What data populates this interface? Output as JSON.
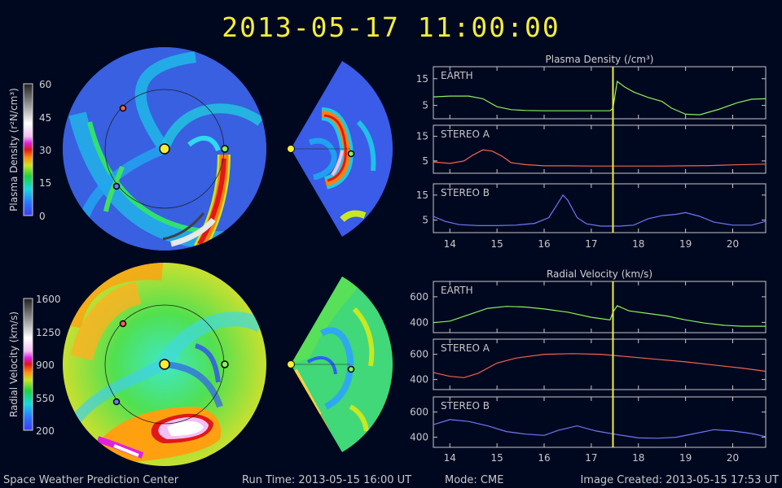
{
  "header": {
    "timestamp": "2013-05-17  11:00:00"
  },
  "footer": {
    "center": "Space Weather Prediction Center",
    "run_time": "Run Time: 2013-05-15 16:00 UT",
    "mode": "Mode: CME",
    "created": "Image Created: 2013-05-15 17:53 UT"
  },
  "colors": {
    "earth": "#8cf05a",
    "stereo_a": "#f06450",
    "stereo_b": "#6e78f5",
    "marker": "#f0f03c",
    "sun": "#f4ee38"
  },
  "maps": {
    "density_colorbar": {
      "label": "Plasma Density (r²N/cm³)",
      "ticks": [
        "60",
        "45",
        "30",
        "15",
        "0"
      ]
    },
    "velocity_colorbar": {
      "label": "Radial Velocity (km/s)",
      "ticks": [
        "1600",
        "1250",
        "900",
        "550",
        "200"
      ]
    }
  },
  "chart_data": [
    {
      "type": "line",
      "title": "Plasma Density (/cm³)",
      "x_tick_labels": [
        "14",
        "15",
        "16",
        "17",
        "18",
        "19",
        "20"
      ],
      "xlim": [
        13.65,
        20.7
      ],
      "current_time_marker": 17.46,
      "panels": [
        {
          "label": "EARTH",
          "color": "earth",
          "yticks": [
            "15",
            "5"
          ],
          "ylim": [
            0,
            19.5
          ],
          "x": [
            13.65,
            14.0,
            14.4,
            14.7,
            15.0,
            15.3,
            15.6,
            16.0,
            16.5,
            17.0,
            17.4,
            17.46,
            17.55,
            17.7,
            17.9,
            18.2,
            18.5,
            18.7,
            19.0,
            19.3,
            19.7,
            20.1,
            20.4,
            20.7
          ],
          "values": [
            8.2,
            8.5,
            8.5,
            7.5,
            4.5,
            3.4,
            3.1,
            3.0,
            3.0,
            3.0,
            3.0,
            4.0,
            14.0,
            12.0,
            10.0,
            8.0,
            6.5,
            4.0,
            1.7,
            1.5,
            3.5,
            6.0,
            7.3,
            7.5
          ]
        },
        {
          "label": "STEREO A",
          "color": "stereo_a",
          "yticks": [
            "15",
            "5"
          ],
          "ylim": [
            0,
            19.5
          ],
          "x": [
            13.65,
            14.0,
            14.3,
            14.5,
            14.7,
            14.9,
            15.1,
            15.3,
            15.6,
            16.0,
            16.5,
            17.0,
            17.5,
            18.0,
            18.5,
            19.0,
            19.5,
            20.0,
            20.7
          ],
          "values": [
            4.6,
            4.0,
            5.0,
            7.5,
            9.5,
            9.0,
            7.0,
            4.3,
            3.5,
            3.0,
            3.0,
            2.9,
            2.9,
            2.9,
            2.9,
            3.0,
            3.1,
            3.4,
            3.7
          ]
        },
        {
          "label": "STEREO B",
          "color": "stereo_b",
          "yticks": [
            "15",
            "5"
          ],
          "ylim": [
            0,
            19.5
          ],
          "x": [
            13.65,
            13.9,
            14.2,
            14.6,
            15.0,
            15.4,
            15.8,
            16.1,
            16.3,
            16.4,
            16.5,
            16.7,
            16.9,
            17.2,
            17.6,
            17.9,
            18.2,
            18.5,
            18.8,
            19.0,
            19.3,
            19.6,
            20.0,
            20.4,
            20.7
          ],
          "values": [
            6.5,
            4.5,
            3.2,
            2.8,
            2.8,
            3.0,
            3.7,
            6.0,
            12.0,
            15.0,
            13.0,
            6.0,
            3.5,
            2.6,
            2.6,
            3.0,
            5.5,
            6.8,
            7.3,
            8.0,
            6.5,
            4.2,
            3.0,
            3.0,
            4.5
          ]
        }
      ]
    },
    {
      "type": "line",
      "title": "Radial Velocity (km/s)",
      "x_tick_labels": [
        "14",
        "15",
        "16",
        "17",
        "18",
        "19",
        "20"
      ],
      "xlim": [
        13.65,
        20.7
      ],
      "current_time_marker": 17.46,
      "panels": [
        {
          "label": "EARTH",
          "color": "earth",
          "yticks": [
            "600",
            "400"
          ],
          "ylim": [
            320,
            720
          ],
          "x": [
            13.65,
            14.0,
            14.4,
            14.8,
            15.2,
            15.6,
            16.0,
            16.5,
            17.0,
            17.4,
            17.46,
            17.55,
            17.8,
            18.2,
            18.6,
            19.0,
            19.4,
            19.8,
            20.2,
            20.7
          ],
          "values": [
            398,
            410,
            460,
            510,
            525,
            520,
            505,
            480,
            440,
            420,
            480,
            530,
            490,
            470,
            450,
            420,
            395,
            378,
            370,
            370
          ]
        },
        {
          "label": "STEREO A",
          "color": "stereo_a",
          "yticks": [
            "600",
            "400"
          ],
          "ylim": [
            320,
            720
          ],
          "x": [
            13.65,
            14.0,
            14.3,
            14.6,
            15.0,
            15.4,
            16.0,
            16.6,
            17.2,
            17.8,
            18.4,
            19.0,
            19.6,
            20.2,
            20.7
          ],
          "values": [
            455,
            425,
            415,
            450,
            530,
            570,
            600,
            605,
            600,
            580,
            560,
            540,
            515,
            490,
            465
          ]
        },
        {
          "label": "STEREO B",
          "color": "stereo_b",
          "yticks": [
            "600",
            "400"
          ],
          "ylim": [
            320,
            720
          ],
          "x": [
            13.65,
            14.0,
            14.4,
            14.8,
            15.2,
            15.6,
            16.0,
            16.3,
            16.7,
            17.1,
            17.6,
            18.0,
            18.4,
            18.8,
            19.2,
            19.6,
            20.0,
            20.4,
            20.7
          ],
          "values": [
            500,
            540,
            525,
            490,
            445,
            425,
            415,
            455,
            490,
            450,
            418,
            395,
            392,
            400,
            430,
            460,
            450,
            430,
            405
          ]
        }
      ]
    }
  ]
}
